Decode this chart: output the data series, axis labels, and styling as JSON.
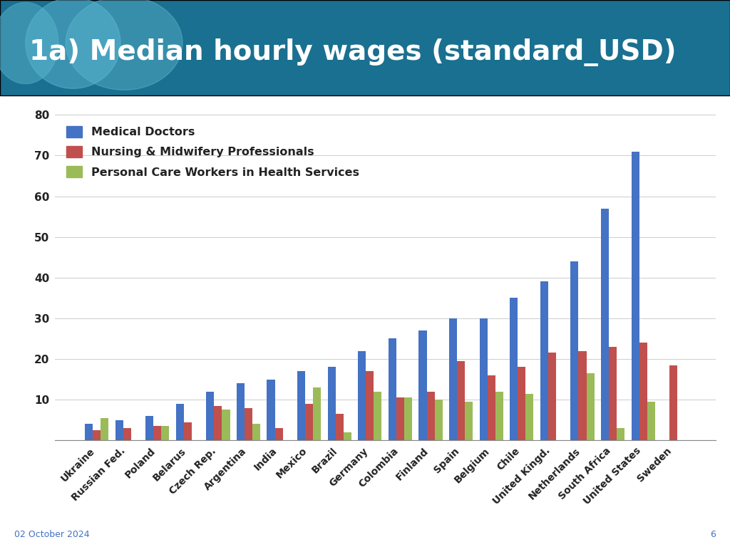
{
  "title": "1a) Median hourly wages (standard_USD)",
  "header_bg_color": "#1a7090",
  "header_text_color": "#ffffff",
  "footer_date": "02 October 2024",
  "footer_page": "6",
  "footer_color": "#4472C4",
  "categories": [
    "Ukraine",
    "Russian Fed.",
    "Poland",
    "Belarus",
    "Czech Rep.",
    "Argentina",
    "India",
    "Mexico",
    "Brazil",
    "Germany",
    "Colombia",
    "Finland",
    "Spain",
    "Belgium",
    "Chile",
    "United Kingd.",
    "Netherlands",
    "South Africa",
    "United States",
    "Sweden"
  ],
  "medical_doctors": [
    4,
    5,
    6,
    9,
    12,
    14,
    15,
    17,
    18,
    22,
    25,
    27,
    30,
    30,
    35,
    39,
    44,
    57,
    71,
    null
  ],
  "nursing_midwifery": [
    2.5,
    3,
    3.5,
    4.5,
    8.5,
    8,
    3,
    9,
    6.5,
    17,
    10.5,
    12,
    19.5,
    16,
    18,
    21.5,
    22,
    23,
    24,
    18.5
  ],
  "personal_care": [
    5.5,
    null,
    3.5,
    null,
    7.5,
    4,
    null,
    13,
    2,
    12,
    10.5,
    10,
    9.5,
    12,
    11.5,
    null,
    16.5,
    3,
    9.5,
    null
  ],
  "bar_color_doctors": "#4472C4",
  "bar_color_nursing": "#C0504D",
  "bar_color_personal": "#9BBB59",
  "ylim": [
    0,
    80
  ],
  "yticks": [
    10,
    20,
    30,
    40,
    50,
    60,
    70,
    80
  ],
  "legend_labels": [
    "Medical Doctors",
    "Nursing & Midwifery Professionals",
    "Personal Care Workers in Health Services"
  ],
  "background_color": "#ffffff",
  "chart_bg_color": "#ffffff",
  "grid_color": "#cccccc",
  "sep_color": "#a0a0a0"
}
